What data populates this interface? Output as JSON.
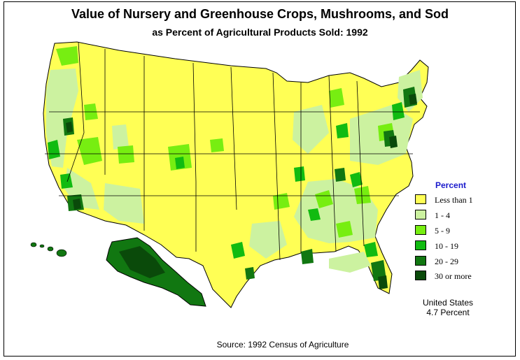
{
  "title": "Value of Nursery and Greenhouse Crops, Mushrooms, and Sod",
  "subtitle": "as Percent of Agricultural Products Sold:  1992",
  "legend": {
    "title": "Percent",
    "items": [
      {
        "label": "Less than 1",
        "color": "#ffff55"
      },
      {
        "label": "1  -  4",
        "color": "#ccf2a0"
      },
      {
        "label": "5  -  9",
        "color": "#77ee11"
      },
      {
        "label": "10  -  19",
        "color": "#11bb11"
      },
      {
        "label": "20  -  29",
        "color": "#117711"
      },
      {
        "label": "30 or more",
        "color": "#0a4a0a"
      }
    ]
  },
  "us_total": {
    "line1": "United States",
    "line2": "4.7 Percent"
  },
  "source": "Source:  1992 Census of Agriculture"
}
